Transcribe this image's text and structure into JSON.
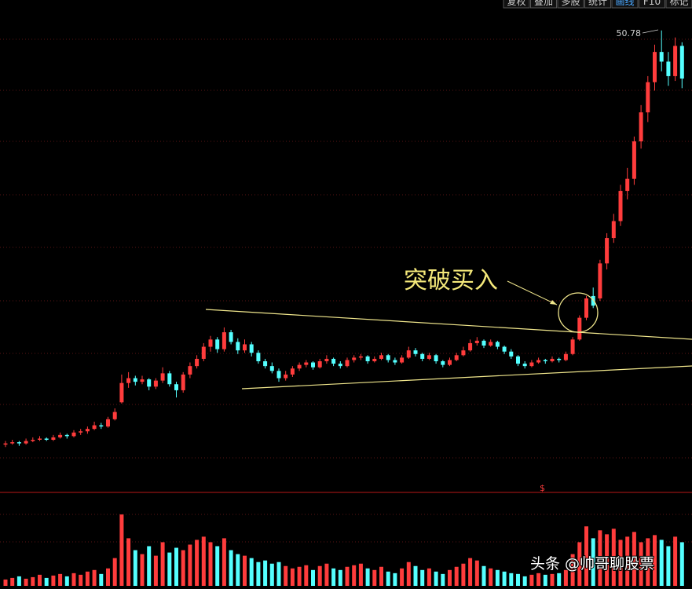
{
  "toolbar": [
    "复权",
    "叠加",
    "多股",
    "统计",
    "画线",
    "F10",
    "标记"
  ],
  "watermark": "头条 @帅哥聊股票",
  "chart_data": {
    "type": "candlestick",
    "annotation": "突破买入",
    "up_color": "#ff3c3c",
    "down_color": "#54ffff",
    "ylim": [
      13,
      52
    ],
    "vlim": [
      0,
      100
    ],
    "candles": [
      [
        16.5,
        16.8,
        16.3,
        16.6
      ],
      [
        16.6,
        16.9,
        16.5,
        16.7
      ],
      [
        16.7,
        16.8,
        16.4,
        16.6
      ],
      [
        16.6,
        17.0,
        16.5,
        16.8
      ],
      [
        16.8,
        17.1,
        16.7,
        16.9
      ],
      [
        16.9,
        17.2,
        16.8,
        17.0
      ],
      [
        17.0,
        17.1,
        16.8,
        16.9
      ],
      [
        16.9,
        17.3,
        16.8,
        17.1
      ],
      [
        17.1,
        17.5,
        17.0,
        17.3
      ],
      [
        17.3,
        17.4,
        17.0,
        17.2
      ],
      [
        17.2,
        17.7,
        17.1,
        17.5
      ],
      [
        17.5,
        17.8,
        17.3,
        17.6
      ],
      [
        17.6,
        18.0,
        17.4,
        17.8
      ],
      [
        17.8,
        18.4,
        17.7,
        18.1
      ],
      [
        18.1,
        18.3,
        17.8,
        18.0
      ],
      [
        18.0,
        18.8,
        17.9,
        18.6
      ],
      [
        18.6,
        19.5,
        18.5,
        19.2
      ],
      [
        20.0,
        22.3,
        19.9,
        21.6
      ],
      [
        21.6,
        22.5,
        21.2,
        22.0
      ],
      [
        22.0,
        22.2,
        21.4,
        21.7
      ],
      [
        21.7,
        22.2,
        21.5,
        21.9
      ],
      [
        21.9,
        22.0,
        21.0,
        21.3
      ],
      [
        21.3,
        22.0,
        21.1,
        21.8
      ],
      [
        21.8,
        22.9,
        21.6,
        22.4
      ],
      [
        22.4,
        22.6,
        21.3,
        21.5
      ],
      [
        21.5,
        21.7,
        20.4,
        21.0
      ],
      [
        21.0,
        22.5,
        20.8,
        22.3
      ],
      [
        22.3,
        23.3,
        22.0,
        23.0
      ],
      [
        23.0,
        23.9,
        22.8,
        23.6
      ],
      [
        23.6,
        24.9,
        23.4,
        24.6
      ],
      [
        24.6,
        25.5,
        24.2,
        25.2
      ],
      [
        25.2,
        25.4,
        24.1,
        24.4
      ],
      [
        24.4,
        26.2,
        24.2,
        25.8
      ],
      [
        25.8,
        26.0,
        24.8,
        25.0
      ],
      [
        25.0,
        25.3,
        24.0,
        24.3
      ],
      [
        24.3,
        25.2,
        24.1,
        24.8
      ],
      [
        24.8,
        25.0,
        23.8,
        24.1
      ],
      [
        24.1,
        24.3,
        23.2,
        23.4
      ],
      [
        23.4,
        23.6,
        22.8,
        23.0
      ],
      [
        23.0,
        23.3,
        22.4,
        22.6
      ],
      [
        22.6,
        22.8,
        21.7,
        22.0
      ],
      [
        22.0,
        22.6,
        21.8,
        22.3
      ],
      [
        22.3,
        23.0,
        22.1,
        22.8
      ],
      [
        22.8,
        23.3,
        22.6,
        23.1
      ],
      [
        23.1,
        23.5,
        22.9,
        23.3
      ],
      [
        23.3,
        23.4,
        22.7,
        22.9
      ],
      [
        22.9,
        23.6,
        22.8,
        23.4
      ],
      [
        23.4,
        23.9,
        23.2,
        23.6
      ],
      [
        23.6,
        23.7,
        23.0,
        23.2
      ],
      [
        23.2,
        23.4,
        22.8,
        23.0
      ],
      [
        23.0,
        23.7,
        22.9,
        23.5
      ],
      [
        23.5,
        23.9,
        23.3,
        23.7
      ],
      [
        23.7,
        24.0,
        23.5,
        23.8
      ],
      [
        23.8,
        23.9,
        23.2,
        23.4
      ],
      [
        23.4,
        23.8,
        23.3,
        23.6
      ],
      [
        23.6,
        24.1,
        23.5,
        23.9
      ],
      [
        23.9,
        24.0,
        23.3,
        23.5
      ],
      [
        23.5,
        23.7,
        23.1,
        23.3
      ],
      [
        23.3,
        23.9,
        23.2,
        23.7
      ],
      [
        23.7,
        24.6,
        23.6,
        24.3
      ],
      [
        24.3,
        24.5,
        23.8,
        24.0
      ],
      [
        24.0,
        24.1,
        23.4,
        23.6
      ],
      [
        23.6,
        24.1,
        23.5,
        23.9
      ],
      [
        23.9,
        24.0,
        23.2,
        23.4
      ],
      [
        23.4,
        23.5,
        22.9,
        23.1
      ],
      [
        23.1,
        23.7,
        23.0,
        23.5
      ],
      [
        23.5,
        24.1,
        23.4,
        23.9
      ],
      [
        23.9,
        24.6,
        23.8,
        24.3
      ],
      [
        24.3,
        25.2,
        24.2,
        24.9
      ],
      [
        24.9,
        25.4,
        24.7,
        25.1
      ],
      [
        25.1,
        25.2,
        24.5,
        24.7
      ],
      [
        24.7,
        25.2,
        24.6,
        25.0
      ],
      [
        25.0,
        25.1,
        24.4,
        24.6
      ],
      [
        24.6,
        24.7,
        24.0,
        24.2
      ],
      [
        24.2,
        24.4,
        23.6,
        23.8
      ],
      [
        23.8,
        23.9,
        23.0,
        23.2
      ],
      [
        23.2,
        23.4,
        22.8,
        23.0
      ],
      [
        23.0,
        23.5,
        22.9,
        23.3
      ],
      [
        23.3,
        23.7,
        23.2,
        23.5
      ],
      [
        23.5,
        23.6,
        23.2,
        23.4
      ],
      [
        23.4,
        23.8,
        23.3,
        23.6
      ],
      [
        23.6,
        23.7,
        23.3,
        23.5
      ],
      [
        23.5,
        24.2,
        23.4,
        24.0
      ],
      [
        24.0,
        25.4,
        23.9,
        25.2
      ],
      [
        25.2,
        27.2,
        25.1,
        27.0
      ],
      [
        27.0,
        28.8,
        26.8,
        28.6
      ],
      [
        28.8,
        29.5,
        27.8,
        28.0
      ],
      [
        28.6,
        31.8,
        28.4,
        31.5
      ],
      [
        31.5,
        34.0,
        31.0,
        33.6
      ],
      [
        33.6,
        35.6,
        33.2,
        35.0
      ],
      [
        35.0,
        38.0,
        34.6,
        37.5
      ],
      [
        37.5,
        39.4,
        36.8,
        38.5
      ],
      [
        38.5,
        42.0,
        38.0,
        41.6
      ],
      [
        41.6,
        44.6,
        41.0,
        44.0
      ],
      [
        44.0,
        47.0,
        43.2,
        46.5
      ],
      [
        46.5,
        49.6,
        45.8,
        49.0
      ],
      [
        49.0,
        50.78,
        47.4,
        48.2
      ],
      [
        48.2,
        49.0,
        46.2,
        47.0
      ],
      [
        47.0,
        50.2,
        46.6,
        49.5
      ],
      [
        49.5,
        49.8,
        46.0,
        46.8
      ]
    ],
    "volumes": [
      8,
      10,
      12,
      9,
      11,
      14,
      10,
      13,
      15,
      12,
      16,
      14,
      18,
      20,
      15,
      22,
      35,
      90,
      60,
      45,
      40,
      50,
      38,
      55,
      42,
      48,
      45,
      52,
      58,
      62,
      55,
      50,
      60,
      45,
      40,
      38,
      35,
      30,
      32,
      28,
      30,
      25,
      22,
      24,
      26,
      20,
      25,
      28,
      22,
      20,
      24,
      26,
      28,
      22,
      20,
      24,
      18,
      16,
      22,
      30,
      25,
      20,
      22,
      18,
      15,
      20,
      24,
      28,
      35,
      32,
      25,
      22,
      20,
      18,
      16,
      15,
      12,
      14,
      16,
      14,
      15,
      16,
      20,
      40,
      55,
      75,
      60,
      70,
      65,
      72,
      58,
      62,
      68,
      55,
      60,
      64,
      58,
      50,
      62,
      55
    ]
  }
}
